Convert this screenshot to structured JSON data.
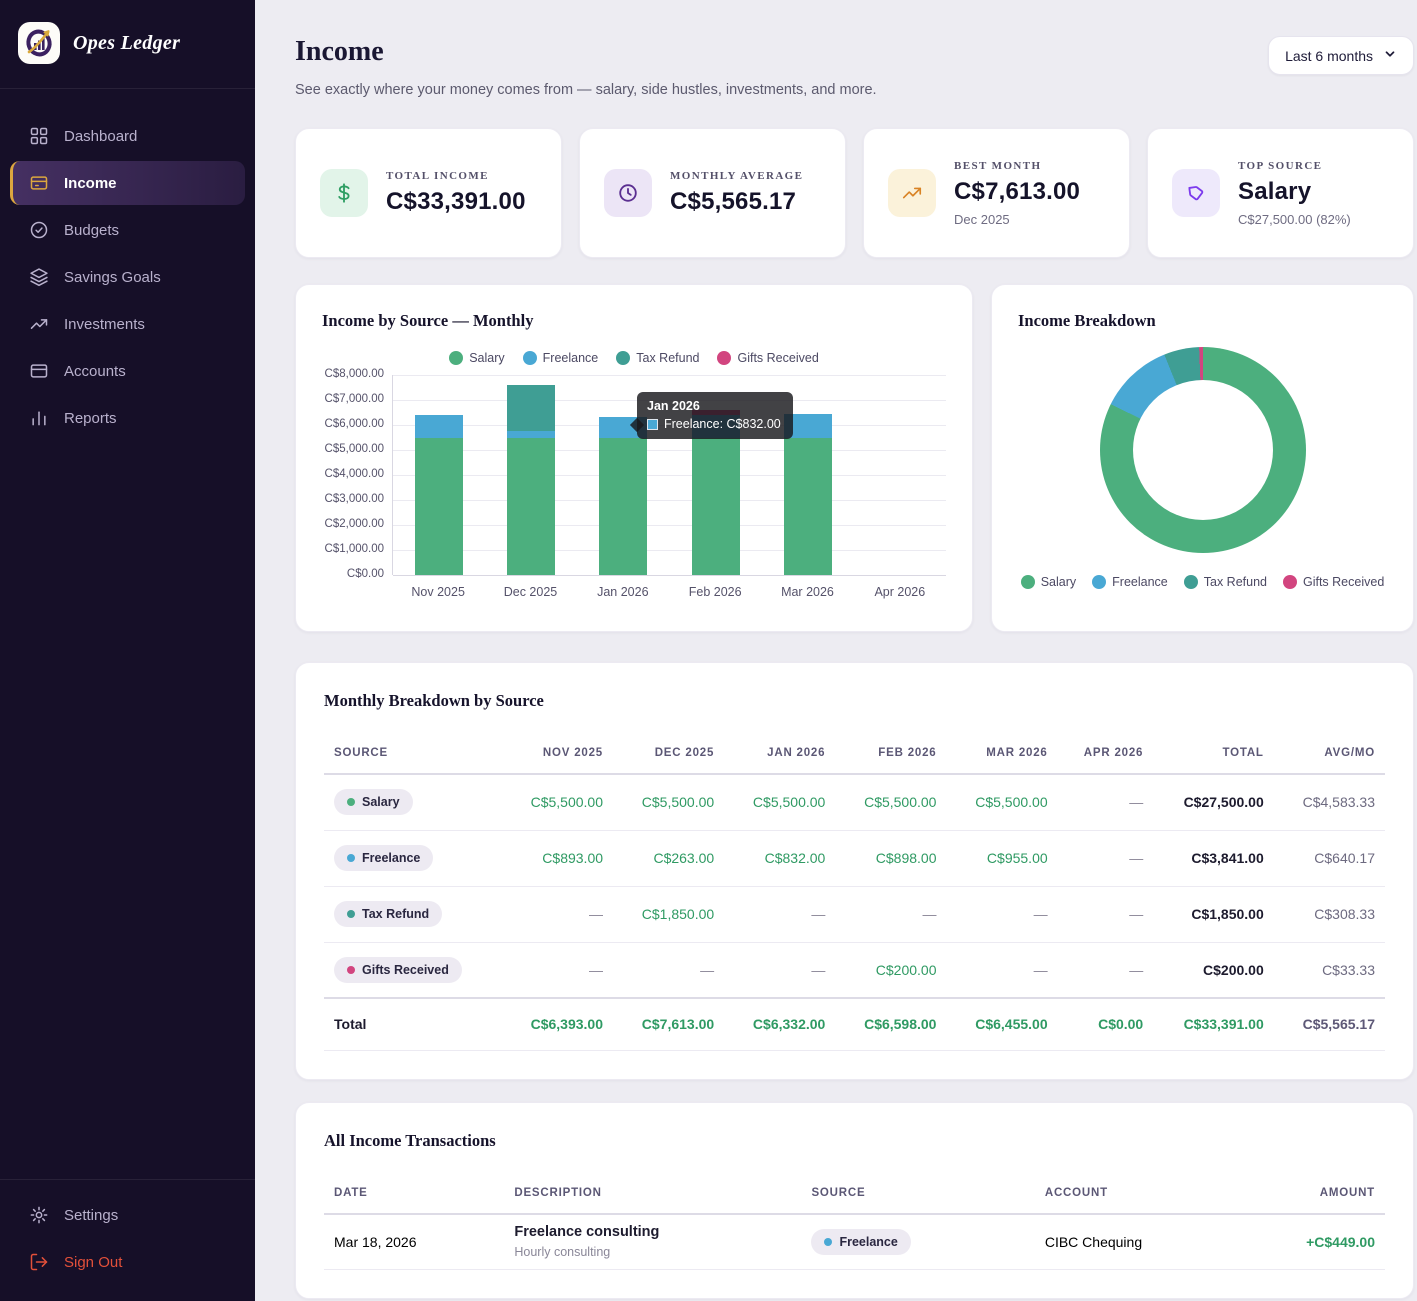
{
  "sidebar": {
    "brand": "Opes Ledger",
    "nav": [
      {
        "label": "Dashboard",
        "icon": "grid-icon",
        "active": false
      },
      {
        "label": "Income",
        "icon": "wallet-icon",
        "active": true
      },
      {
        "label": "Budgets",
        "icon": "check-circle-icon",
        "active": false
      },
      {
        "label": "Savings Goals",
        "icon": "layers-icon",
        "active": false
      },
      {
        "label": "Investments",
        "icon": "trending-up-icon",
        "active": false
      },
      {
        "label": "Accounts",
        "icon": "credit-card-icon",
        "active": false
      },
      {
        "label": "Reports",
        "icon": "bar-chart-icon",
        "active": false
      }
    ],
    "footer": [
      {
        "label": "Settings",
        "icon": "gear-icon",
        "danger": false
      },
      {
        "label": "Sign Out",
        "icon": "sign-out-icon",
        "danger": true
      }
    ]
  },
  "header": {
    "title": "Income",
    "subtitle": "See exactly where your money comes from — salary, side hustles, investments, and more.",
    "range_selector": "Last 6 months"
  },
  "stats": [
    {
      "label": "TOTAL INCOME",
      "value": "C$33,391.00",
      "subtitle": "",
      "icon": "dollar-icon",
      "icon_bg": "#e2f4e9",
      "icon_color": "#2e9e63"
    },
    {
      "label": "MONTHLY AVERAGE",
      "value": "C$5,565.17",
      "subtitle": "",
      "icon": "clock-icon",
      "icon_bg": "#ece5f6",
      "icon_color": "#5b2f91"
    },
    {
      "label": "BEST MONTH",
      "value": "C$7,613.00",
      "subtitle": "Dec 2025",
      "icon": "trending-up-icon",
      "icon_bg": "#fbf2da",
      "icon_color": "#d98324"
    },
    {
      "label": "TOP SOURCE",
      "value": "Salary",
      "subtitle": "C$27,500.00 (82%)",
      "icon": "tag-icon",
      "icon_bg": "#eee9fb",
      "icon_color": "#7c3aed"
    }
  ],
  "chart_data": [
    {
      "type": "bar",
      "title": "Income by Source — Monthly",
      "stacked": true,
      "categories": [
        "Nov 2025",
        "Dec 2025",
        "Jan 2026",
        "Feb 2026",
        "Mar 2026",
        "Apr 2026"
      ],
      "series": [
        {
          "name": "Salary",
          "color": "#4caf7e",
          "values": [
            5500,
            5500,
            5500,
            5500,
            5500,
            0
          ]
        },
        {
          "name": "Freelance",
          "color": "#49a8d4",
          "values": [
            893,
            263,
            832,
            898,
            955,
            0
          ]
        },
        {
          "name": "Tax Refund",
          "color": "#3f9e94",
          "values": [
            0,
            1850,
            0,
            0,
            0,
            0
          ]
        },
        {
          "name": "Gifts Received",
          "color": "#d2457f",
          "values": [
            0,
            0,
            0,
            200,
            0,
            0
          ]
        }
      ],
      "ylim": [
        0,
        8000
      ],
      "ytick_labels": [
        "C$8,000.00",
        "C$7,000.00",
        "C$6,000.00",
        "C$5,000.00",
        "C$4,000.00",
        "C$3,000.00",
        "C$2,000.00",
        "C$1,000.00",
        "C$0.00"
      ],
      "grid": true,
      "legend_position": "top",
      "tooltip": {
        "title": "Jan 2026",
        "label": "Freelance: C$832.00",
        "color": "#49a8d4"
      }
    },
    {
      "type": "pie",
      "title": "Income Breakdown",
      "labels": [
        "Salary",
        "Freelance",
        "Tax Refund",
        "Gifts Received"
      ],
      "values": [
        27500,
        3841,
        1850,
        200
      ],
      "colors": [
        "#4caf7e",
        "#49a8d4",
        "#3f9e94",
        "#d2457f"
      ],
      "legend_position": "bottom"
    }
  ],
  "breakdown": {
    "title": "Monthly Breakdown by Source",
    "columns": [
      "SOURCE",
      "NOV 2025",
      "DEC 2025",
      "JAN 2026",
      "FEB 2026",
      "MAR 2026",
      "APR 2026",
      "TOTAL",
      "AVG/MO"
    ],
    "rows": [
      {
        "source": "Salary",
        "dot": "#4caf7e",
        "cells": [
          "C$5,500.00",
          "C$5,500.00",
          "C$5,500.00",
          "C$5,500.00",
          "C$5,500.00",
          "—"
        ],
        "total": "C$27,500.00",
        "avg": "C$4,583.33"
      },
      {
        "source": "Freelance",
        "dot": "#49a8d4",
        "cells": [
          "C$893.00",
          "C$263.00",
          "C$832.00",
          "C$898.00",
          "C$955.00",
          "—"
        ],
        "total": "C$3,841.00",
        "avg": "C$640.17"
      },
      {
        "source": "Tax Refund",
        "dot": "#3f9e94",
        "cells": [
          "—",
          "C$1,850.00",
          "—",
          "—",
          "—",
          "—"
        ],
        "total": "C$1,850.00",
        "avg": "C$308.33"
      },
      {
        "source": "Gifts Received",
        "dot": "#d2457f",
        "cells": [
          "—",
          "—",
          "—",
          "C$200.00",
          "—",
          "—"
        ],
        "total": "C$200.00",
        "avg": "C$33.33"
      }
    ],
    "total_row": {
      "label": "Total",
      "cells": [
        "C$6,393.00",
        "C$7,613.00",
        "C$6,332.00",
        "C$6,598.00",
        "C$6,455.00",
        "C$0.00"
      ],
      "total": "C$33,391.00",
      "avg": "C$5,565.17"
    }
  },
  "transactions": {
    "title": "All Income Transactions",
    "columns": [
      "DATE",
      "DESCRIPTION",
      "SOURCE",
      "ACCOUNT",
      "AMOUNT"
    ],
    "rows": [
      {
        "date": "Mar 18, 2026",
        "description": "Freelance consulting",
        "note": "Hourly consulting",
        "source": "Freelance",
        "dot": "#49a8d4",
        "account": "CIBC Chequing",
        "amount": "+C$449.00"
      }
    ]
  }
}
